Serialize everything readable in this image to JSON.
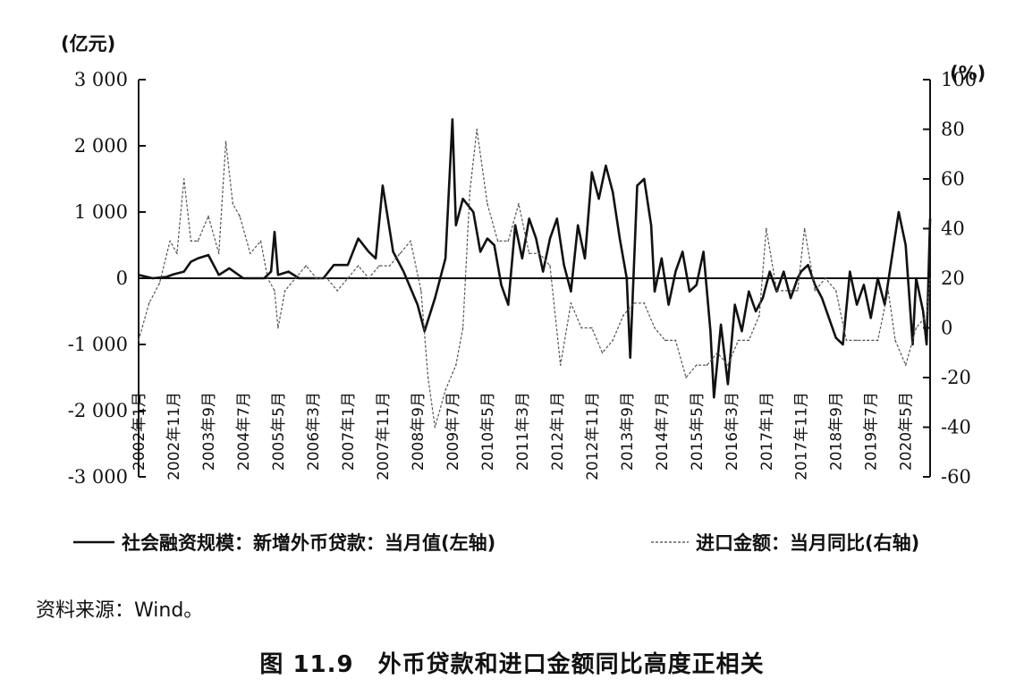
{
  "chart_data": {
    "type": "line",
    "left_axis_unit": "(亿元)",
    "right_axis_unit": "(%)",
    "left_ylim": [
      -3000,
      3000
    ],
    "right_ylim": [
      -60,
      100
    ],
    "left_yticks": [
      3000,
      2000,
      1000,
      0,
      -1000,
      -2000,
      -3000
    ],
    "left_ytick_labels": [
      "3 000",
      "2 000",
      "1 000",
      "0",
      "-1 000",
      "-2 000",
      "-3 000"
    ],
    "right_yticks": [
      100,
      80,
      60,
      40,
      20,
      0,
      -20,
      -40,
      -60
    ],
    "right_ytick_labels": [
      "100",
      "80",
      "60",
      "40",
      "20",
      "0",
      "-20",
      "-40",
      "-60"
    ],
    "x_ticks": [
      {
        "label": "2002年1月",
        "date": "2002-01"
      },
      {
        "label": "2002年11月",
        "date": "2002-11"
      },
      {
        "label": "2003年9月",
        "date": "2003-09"
      },
      {
        "label": "2004年7月",
        "date": "2004-07"
      },
      {
        "label": "2005年5月",
        "date": "2005-05"
      },
      {
        "label": "2006年3月",
        "date": "2006-03"
      },
      {
        "label": "2007年1月",
        "date": "2007-01"
      },
      {
        "label": "2007年11月",
        "date": "2007-11"
      },
      {
        "label": "2008年9月",
        "date": "2008-09"
      },
      {
        "label": "2009年7月",
        "date": "2009-07"
      },
      {
        "label": "2010年5月",
        "date": "2010-05"
      },
      {
        "label": "2011年3月",
        "date": "2011-03"
      },
      {
        "label": "2012年1月",
        "date": "2012-01"
      },
      {
        "label": "2012年11月",
        "date": "2012-11"
      },
      {
        "label": "2013年9月",
        "date": "2013-09"
      },
      {
        "label": "2014年7月",
        "date": "2014-07"
      },
      {
        "label": "2015年5月",
        "date": "2015-05"
      },
      {
        "label": "2016年3月",
        "date": "2016-03"
      },
      {
        "label": "2017年1月",
        "date": "2017-01"
      },
      {
        "label": "2017年11月",
        "date": "2017-11"
      },
      {
        "label": "2018年9月",
        "date": "2018-09"
      },
      {
        "label": "2019年7月",
        "date": "2019-07"
      },
      {
        "label": "2020年5月",
        "date": "2020-05"
      }
    ],
    "series": [
      {
        "name": "社会融资规模：新增外币贷款：当月值(左轴)",
        "axis": "left",
        "style": "solid",
        "color": "#111111",
        "points": [
          [
            "2002-01",
            50
          ],
          [
            "2002-05",
            0
          ],
          [
            "2002-09",
            20
          ],
          [
            "2002-11",
            60
          ],
          [
            "2003-02",
            100
          ],
          [
            "2003-04",
            250
          ],
          [
            "2003-06",
            300
          ],
          [
            "2003-09",
            350
          ],
          [
            "2003-12",
            50
          ],
          [
            "2004-03",
            150
          ],
          [
            "2004-07",
            0
          ],
          [
            "2004-10",
            0
          ],
          [
            "2005-01",
            0
          ],
          [
            "2005-03",
            100
          ],
          [
            "2005-04",
            700
          ],
          [
            "2005-05",
            50
          ],
          [
            "2005-08",
            100
          ],
          [
            "2005-11",
            0
          ],
          [
            "2006-03",
            0
          ],
          [
            "2006-06",
            0
          ],
          [
            "2006-09",
            200
          ],
          [
            "2007-01",
            200
          ],
          [
            "2007-04",
            600
          ],
          [
            "2007-07",
            400
          ],
          [
            "2007-09",
            300
          ],
          [
            "2007-11",
            1400
          ],
          [
            "2008-02",
            400
          ],
          [
            "2008-05",
            100
          ],
          [
            "2008-09",
            -400
          ],
          [
            "2008-11",
            -800
          ],
          [
            "2009-02",
            -300
          ],
          [
            "2009-05",
            300
          ],
          [
            "2009-07",
            2400
          ],
          [
            "2009-08",
            800
          ],
          [
            "2009-10",
            1200
          ],
          [
            "2010-01",
            1000
          ],
          [
            "2010-03",
            400
          ],
          [
            "2010-05",
            600
          ],
          [
            "2010-07",
            500
          ],
          [
            "2010-09",
            -100
          ],
          [
            "2010-11",
            -400
          ],
          [
            "2011-01",
            800
          ],
          [
            "2011-03",
            300
          ],
          [
            "2011-05",
            900
          ],
          [
            "2011-07",
            600
          ],
          [
            "2011-09",
            100
          ],
          [
            "2011-11",
            600
          ],
          [
            "2012-01",
            900
          ],
          [
            "2012-03",
            200
          ],
          [
            "2012-05",
            -200
          ],
          [
            "2012-07",
            800
          ],
          [
            "2012-09",
            300
          ],
          [
            "2012-11",
            1600
          ],
          [
            "2013-01",
            1200
          ],
          [
            "2013-03",
            1700
          ],
          [
            "2013-05",
            1300
          ],
          [
            "2013-07",
            600
          ],
          [
            "2013-09",
            0
          ],
          [
            "2013-10",
            -1200
          ],
          [
            "2013-12",
            1400
          ],
          [
            "2014-02",
            1500
          ],
          [
            "2014-04",
            800
          ],
          [
            "2014-05",
            -200
          ],
          [
            "2014-07",
            300
          ],
          [
            "2014-09",
            -400
          ],
          [
            "2014-11",
            100
          ],
          [
            "2015-01",
            400
          ],
          [
            "2015-03",
            -200
          ],
          [
            "2015-05",
            -100
          ],
          [
            "2015-07",
            400
          ],
          [
            "2015-09",
            -800
          ],
          [
            "2015-10",
            -1800
          ],
          [
            "2015-12",
            -700
          ],
          [
            "2016-02",
            -1600
          ],
          [
            "2016-04",
            -400
          ],
          [
            "2016-06",
            -800
          ],
          [
            "2016-08",
            -200
          ],
          [
            "2016-10",
            -500
          ],
          [
            "2016-12",
            -300
          ],
          [
            "2017-02",
            100
          ],
          [
            "2017-04",
            -200
          ],
          [
            "2017-06",
            100
          ],
          [
            "2017-08",
            -300
          ],
          [
            "2017-10",
            0
          ],
          [
            "2017-11",
            100
          ],
          [
            "2018-01",
            200
          ],
          [
            "2018-03",
            -100
          ],
          [
            "2018-05",
            -300
          ],
          [
            "2018-07",
            -600
          ],
          [
            "2018-09",
            -900
          ],
          [
            "2018-11",
            -1000
          ],
          [
            "2019-01",
            100
          ],
          [
            "2019-03",
            -400
          ],
          [
            "2019-05",
            -100
          ],
          [
            "2019-07",
            -600
          ],
          [
            "2019-09",
            0
          ],
          [
            "2019-11",
            -400
          ],
          [
            "2020-01",
            300
          ],
          [
            "2020-03",
            1000
          ],
          [
            "2020-05",
            500
          ],
          [
            "2020-07",
            -1000
          ],
          [
            "2020-08",
            0
          ],
          [
            "2020-10",
            -500
          ],
          [
            "2020-11",
            -1000
          ],
          [
            "2020-12",
            900
          ]
        ]
      },
      {
        "name": "进口金额：当月同比(右轴)",
        "axis": "right",
        "style": "dashed",
        "color": "#555555",
        "points": [
          [
            "2002-01",
            -5
          ],
          [
            "2002-04",
            10
          ],
          [
            "2002-07",
            18
          ],
          [
            "2002-10",
            35
          ],
          [
            "2002-12",
            30
          ],
          [
            "2003-02",
            60
          ],
          [
            "2003-04",
            35
          ],
          [
            "2003-06",
            35
          ],
          [
            "2003-09",
            45
          ],
          [
            "2003-12",
            30
          ],
          [
            "2004-02",
            75
          ],
          [
            "2004-04",
            50
          ],
          [
            "2004-06",
            45
          ],
          [
            "2004-09",
            30
          ],
          [
            "2004-12",
            35
          ],
          [
            "2005-02",
            20
          ],
          [
            "2005-04",
            15
          ],
          [
            "2005-05",
            0
          ],
          [
            "2005-07",
            15
          ],
          [
            "2005-10",
            20
          ],
          [
            "2006-01",
            25
          ],
          [
            "2006-04",
            20
          ],
          [
            "2006-07",
            20
          ],
          [
            "2006-10",
            15
          ],
          [
            "2007-01",
            20
          ],
          [
            "2007-04",
            25
          ],
          [
            "2007-07",
            20
          ],
          [
            "2007-10",
            25
          ],
          [
            "2008-01",
            25
          ],
          [
            "2008-04",
            30
          ],
          [
            "2008-07",
            35
          ],
          [
            "2008-10",
            15
          ],
          [
            "2008-12",
            -20
          ],
          [
            "2009-02",
            -40
          ],
          [
            "2009-05",
            -25
          ],
          [
            "2009-08",
            -15
          ],
          [
            "2009-10",
            0
          ],
          [
            "2009-12",
            55
          ],
          [
            "2010-02",
            80
          ],
          [
            "2010-05",
            50
          ],
          [
            "2010-08",
            35
          ],
          [
            "2010-11",
            35
          ],
          [
            "2011-02",
            50
          ],
          [
            "2011-05",
            30
          ],
          [
            "2011-08",
            30
          ],
          [
            "2011-11",
            25
          ],
          [
            "2012-02",
            -15
          ],
          [
            "2012-05",
            10
          ],
          [
            "2012-08",
            0
          ],
          [
            "2012-11",
            0
          ],
          [
            "2013-02",
            -10
          ],
          [
            "2013-05",
            -5
          ],
          [
            "2013-08",
            5
          ],
          [
            "2013-11",
            10
          ],
          [
            "2014-02",
            10
          ],
          [
            "2014-05",
            0
          ],
          [
            "2014-08",
            -5
          ],
          [
            "2014-11",
            -5
          ],
          [
            "2015-02",
            -20
          ],
          [
            "2015-05",
            -15
          ],
          [
            "2015-08",
            -15
          ],
          [
            "2015-11",
            -10
          ],
          [
            "2016-02",
            -15
          ],
          [
            "2016-05",
            -5
          ],
          [
            "2016-08",
            -5
          ],
          [
            "2016-11",
            5
          ],
          [
            "2017-01",
            40
          ],
          [
            "2017-04",
            15
          ],
          [
            "2017-07",
            15
          ],
          [
            "2017-10",
            15
          ],
          [
            "2017-12",
            40
          ],
          [
            "2018-03",
            15
          ],
          [
            "2018-06",
            20
          ],
          [
            "2018-09",
            15
          ],
          [
            "2018-12",
            -5
          ],
          [
            "2019-03",
            -5
          ],
          [
            "2019-06",
            -5
          ],
          [
            "2019-09",
            -5
          ],
          [
            "2019-12",
            15
          ],
          [
            "2020-02",
            -5
          ],
          [
            "2020-05",
            -15
          ],
          [
            "2020-08",
            0
          ],
          [
            "2020-11",
            5
          ],
          [
            "2020-12",
            20
          ]
        ]
      }
    ],
    "reference_line": {
      "axis": "left",
      "value": 0
    },
    "legend": {
      "position": "bottom",
      "items": [
        {
          "label": "社会融资规模：新增外币贷款：当月值(左轴)",
          "style": "solid"
        },
        {
          "label": "进口金额：当月同比(右轴)",
          "style": "dashed"
        }
      ]
    },
    "grid": false
  },
  "source_text": "资料来源：Wind。",
  "caption": "图 11.9　外币贷款和进口金额同比高度正相关"
}
